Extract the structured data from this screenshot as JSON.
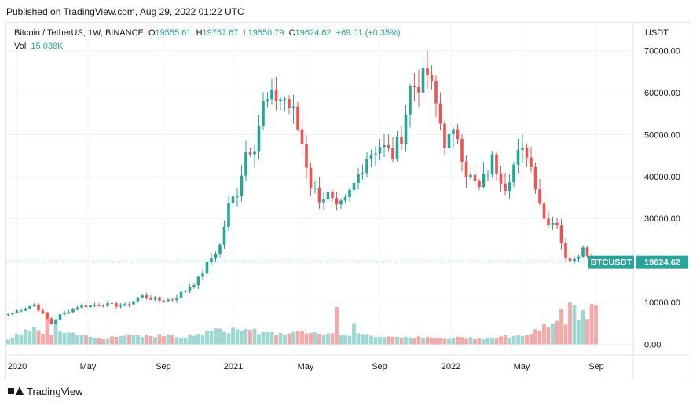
{
  "header": {
    "published": "Published on TradingView.com, Aug 29, 2022 01:22 UTC"
  },
  "legend": {
    "symbol": "Bitcoin / TetherUS, 1W, BINANCE",
    "o_label": "O",
    "o": "19555.61",
    "h_label": "H",
    "h": "19757.67",
    "l_label": "L",
    "l": "19550.79",
    "c_label": "C",
    "c": "19624.62",
    "change": "+69.01 (+0.35%)",
    "vol_label": "Vol",
    "vol": "15.038K"
  },
  "colors": {
    "up": "#26a69a",
    "down": "#ef5350",
    "vol_up": "#9fd7d1",
    "vol_down": "#f2a9a7",
    "grid": "#f0f3fa"
  },
  "footer": {
    "brand": "TradingView"
  },
  "chart_data": {
    "type": "candlestick",
    "currency": "USDT",
    "price_ticks": [
      "70000.00",
      "60000.00",
      "50000.00",
      "40000.00",
      "30000.00",
      "20000.00",
      "10000.00",
      "0.00"
    ],
    "ylim": [
      0,
      70000
    ],
    "x_ticks": [
      "2020",
      "May",
      "Sep",
      "2021",
      "May",
      "Sep",
      "2022",
      "May",
      "Sep"
    ],
    "last_price_label": "BTCUSDT",
    "last_price": "19624.62",
    "anchors": [
      [
        0,
        7200
      ],
      [
        6,
        9500
      ],
      [
        10,
        5000
      ],
      [
        12,
        7000
      ],
      [
        16,
        9000
      ],
      [
        22,
        9500
      ],
      [
        27,
        9200
      ],
      [
        31,
        11500
      ],
      [
        35,
        10500
      ],
      [
        38,
        10700
      ],
      [
        41,
        13000
      ],
      [
        44,
        15500
      ],
      [
        46,
        19000
      ],
      [
        49,
        23500
      ],
      [
        51,
        33000
      ],
      [
        53,
        36500
      ],
      [
        55,
        46000
      ],
      [
        57,
        48000
      ],
      [
        59,
        57000
      ],
      [
        62,
        59000
      ],
      [
        64,
        58500
      ],
      [
        66,
        55000
      ],
      [
        68,
        48000
      ],
      [
        70,
        38000
      ],
      [
        72,
        35000
      ],
      [
        74,
        35500
      ],
      [
        76,
        32000
      ],
      [
        78,
        34000
      ],
      [
        80,
        38000
      ],
      [
        83,
        45000
      ],
      [
        86,
        47500
      ],
      [
        89,
        45000
      ],
      [
        91,
        50000
      ],
      [
        93,
        61000
      ],
      [
        96,
        63000
      ],
      [
        97,
        64500
      ],
      [
        99,
        57000
      ],
      [
        101,
        48500
      ],
      [
        104,
        50000
      ],
      [
        106,
        41000
      ],
      [
        109,
        37000
      ],
      [
        112,
        44000
      ],
      [
        115,
        38000
      ],
      [
        118,
        45000
      ],
      [
        120,
        46000
      ],
      [
        122,
        38500
      ],
      [
        124,
        30000
      ],
      [
        127,
        29000
      ],
      [
        129,
        20000
      ],
      [
        131,
        21000
      ],
      [
        133,
        22800
      ],
      [
        135,
        21000
      ],
      [
        136,
        19624
      ]
    ],
    "volume_anchors": [
      [
        0,
        1600
      ],
      [
        6,
        5500
      ],
      [
        9,
        2500
      ],
      [
        12,
        3800
      ],
      [
        16,
        3000
      ],
      [
        22,
        2000
      ],
      [
        28,
        3200
      ],
      [
        33,
        2800
      ],
      [
        37,
        3000
      ],
      [
        40,
        2200
      ],
      [
        45,
        3500
      ],
      [
        48,
        5000
      ],
      [
        50,
        4000
      ],
      [
        55,
        5500
      ],
      [
        58,
        4000
      ],
      [
        62,
        3800
      ],
      [
        66,
        3500
      ],
      [
        70,
        4500
      ],
      [
        72,
        4000
      ],
      [
        76,
        3500
      ],
      [
        80,
        3200
      ],
      [
        85,
        2800
      ],
      [
        90,
        2500
      ],
      [
        95,
        2200
      ],
      [
        100,
        1800
      ],
      [
        105,
        2200
      ],
      [
        110,
        2000
      ],
      [
        115,
        2500
      ],
      [
        118,
        2800
      ],
      [
        121,
        3500
      ],
      [
        124,
        5500
      ],
      [
        126,
        6000
      ],
      [
        128,
        7500
      ],
      [
        130,
        8000
      ],
      [
        132,
        8800
      ],
      [
        134,
        8200
      ],
      [
        136,
        7800
      ]
    ],
    "volume_spikes": {
      "9": 10500,
      "11": 7300,
      "76": 12000,
      "80": 6800,
      "128": 11500,
      "130": 13500,
      "131": 12500,
      "133": 11000,
      "135": 13000,
      "136": 12500
    },
    "volume_scale_max": 30000
  }
}
